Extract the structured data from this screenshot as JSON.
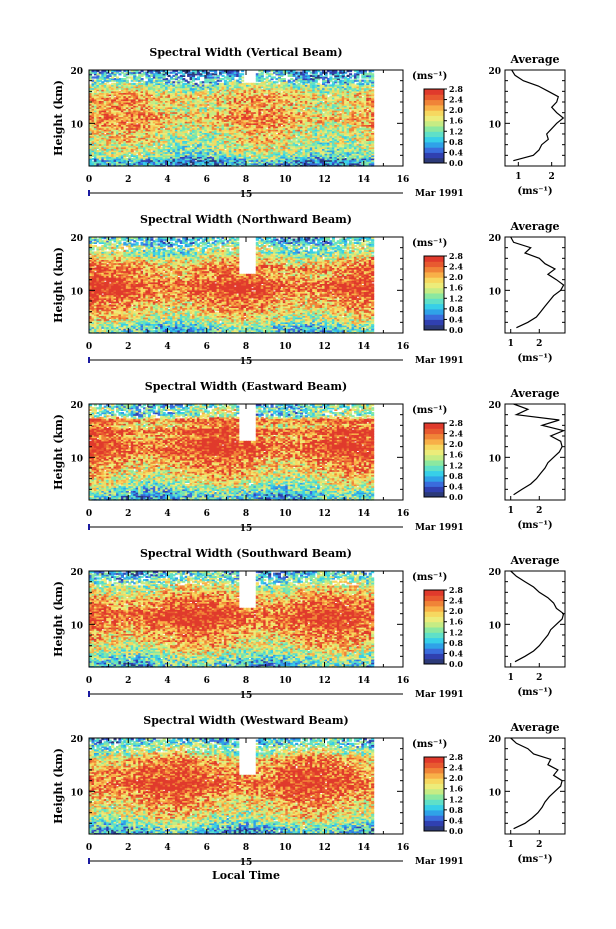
{
  "figure": {
    "xlabel": "Local Time",
    "date_label": "Mar 1991",
    "date_day": "15"
  },
  "colorbar": {
    "unit": "(ms⁻¹)",
    "ticks": [
      "2.8",
      "2.4",
      "2.0",
      "1.6",
      "1.2",
      "0.8",
      "0.4",
      "0.0"
    ],
    "colors": [
      "#2c3a78",
      "#3040b0",
      "#3a6cdc",
      "#2fa2e8",
      "#37cfe8",
      "#5fe0c8",
      "#8be8a0",
      "#c6ec84",
      "#ecec7a",
      "#f6d860",
      "#f8b048",
      "#f08438",
      "#e85a30",
      "#e03a2c"
    ]
  },
  "chart_data": [
    {
      "type": "heatmap",
      "title": "Spectral Width (Vertical Beam)",
      "xlabel": "",
      "ylabel": "Height (km)",
      "xlim": [
        0,
        16
      ],
      "ylim": [
        2,
        20
      ],
      "x_ticks": [
        "0",
        "2",
        "4",
        "6",
        "8",
        "10",
        "12",
        "14",
        "16"
      ],
      "y_ticks": [
        "20",
        "10"
      ],
      "value_range": [
        0,
        2.8
      ],
      "data_end_hour": 14.5,
      "gap_hours": [
        7.8,
        8.5
      ],
      "gap_heights": [
        17.5,
        20
      ],
      "profile": {
        "title": "Average",
        "xlabel": "(ms⁻¹)",
        "x_ticks": [
          "1",
          "2"
        ],
        "y_ticks": [
          "20",
          "10"
        ],
        "xlim": [
          0.6,
          2.4
        ],
        "height": [
          3,
          4,
          5,
          6,
          7,
          8,
          9,
          10,
          11,
          12,
          13,
          14,
          15,
          16,
          17,
          18,
          19,
          20
        ],
        "width": [
          0.85,
          1.45,
          1.62,
          1.7,
          1.9,
          1.85,
          2.0,
          2.15,
          2.35,
          2.15,
          2.0,
          2.15,
          2.2,
          1.9,
          1.6,
          1.15,
          0.9,
          0.8
        ]
      }
    },
    {
      "type": "heatmap",
      "title": "Spectral Width (Northward Beam)",
      "xlabel": "",
      "ylabel": "Height (km)",
      "xlim": [
        0,
        16
      ],
      "ylim": [
        2,
        20
      ],
      "x_ticks": [
        "0",
        "2",
        "4",
        "6",
        "8",
        "10",
        "12",
        "14",
        "16"
      ],
      "y_ticks": [
        "20",
        "10"
      ],
      "value_range": [
        0,
        2.8
      ],
      "data_end_hour": 14.5,
      "gap_hours": [
        7.6,
        8.5
      ],
      "gap_heights": [
        13,
        20
      ],
      "profile": {
        "title": "Average",
        "xlabel": "(ms⁻¹)",
        "x_ticks": [
          "1",
          "2"
        ],
        "y_ticks": [
          "20",
          "10"
        ],
        "xlim": [
          0.8,
          2.9
        ],
        "height": [
          3,
          4,
          5,
          6,
          7,
          8,
          9,
          10,
          11,
          12,
          13,
          14,
          15,
          16,
          17,
          18,
          19,
          20
        ],
        "width": [
          1.2,
          1.6,
          1.9,
          2.05,
          2.2,
          2.35,
          2.5,
          2.75,
          2.85,
          2.6,
          2.3,
          2.55,
          2.2,
          2.0,
          1.5,
          1.7,
          1.1,
          1.0
        ]
      }
    },
    {
      "type": "heatmap",
      "title": "Spectral Width (Eastward Beam)",
      "xlabel": "",
      "ylabel": "Height (km)",
      "xlim": [
        0,
        16
      ],
      "ylim": [
        2,
        20
      ],
      "x_ticks": [
        "0",
        "2",
        "4",
        "6",
        "8",
        "10",
        "12",
        "14",
        "16"
      ],
      "y_ticks": [
        "20",
        "10"
      ],
      "value_range": [
        0,
        2.8
      ],
      "data_end_hour": 14.5,
      "gap_hours": [
        7.6,
        8.5
      ],
      "gap_heights": [
        13,
        20
      ],
      "profile": {
        "title": "Average",
        "xlabel": "(ms⁻¹)",
        "x_ticks": [
          "1",
          "2"
        ],
        "y_ticks": [
          "20",
          "10"
        ],
        "xlim": [
          0.8,
          2.9
        ],
        "height": [
          3,
          4,
          5,
          6,
          7,
          8,
          9,
          10,
          11,
          12,
          13,
          14,
          15,
          16,
          17,
          18,
          19,
          20
        ],
        "width": [
          1.1,
          1.4,
          1.7,
          1.9,
          2.05,
          2.2,
          2.3,
          2.5,
          2.7,
          2.8,
          2.75,
          2.4,
          2.85,
          2.1,
          2.7,
          1.2,
          1.6,
          1.1
        ]
      }
    },
    {
      "type": "heatmap",
      "title": "Spectral Width (Southward Beam)",
      "xlabel": "",
      "ylabel": "Height (km)",
      "xlim": [
        0,
        16
      ],
      "ylim": [
        2,
        20
      ],
      "x_ticks": [
        "0",
        "2",
        "4",
        "6",
        "8",
        "10",
        "12",
        "14",
        "16"
      ],
      "y_ticks": [
        "20",
        "10"
      ],
      "value_range": [
        0,
        2.8
      ],
      "data_end_hour": 14.5,
      "gap_hours": [
        7.6,
        8.5
      ],
      "gap_heights": [
        13,
        20
      ],
      "profile": {
        "title": "Average",
        "xlabel": "(ms⁻¹)",
        "x_ticks": [
          "1",
          "2"
        ],
        "y_ticks": [
          "20",
          "10"
        ],
        "xlim": [
          0.8,
          2.9
        ],
        "height": [
          3,
          4,
          5,
          6,
          7,
          8,
          9,
          10,
          11,
          12,
          13,
          14,
          15,
          16,
          17,
          18,
          19,
          20
        ],
        "width": [
          1.15,
          1.5,
          1.8,
          2.0,
          2.15,
          2.3,
          2.4,
          2.6,
          2.8,
          2.85,
          2.6,
          2.5,
          2.3,
          2.0,
          1.8,
          1.5,
          1.2,
          1.0
        ]
      }
    },
    {
      "type": "heatmap",
      "title": "Spectral Width (Westward Beam)",
      "xlabel": "",
      "ylabel": "Height (km)",
      "xlim": [
        0,
        16
      ],
      "ylim": [
        2,
        20
      ],
      "x_ticks": [
        "0",
        "2",
        "4",
        "6",
        "8",
        "10",
        "12",
        "14",
        "16"
      ],
      "y_ticks": [
        "20",
        "10"
      ],
      "value_range": [
        0,
        2.8
      ],
      "data_end_hour": 14.5,
      "gap_hours": [
        7.6,
        8.5
      ],
      "gap_heights": [
        13,
        20
      ],
      "profile": {
        "title": "Average",
        "xlabel": "(ms⁻¹)",
        "x_ticks": [
          "1",
          "2"
        ],
        "y_ticks": [
          "20",
          "10"
        ],
        "xlim": [
          0.8,
          2.9
        ],
        "height": [
          3,
          4,
          5,
          6,
          7,
          8,
          9,
          10,
          11,
          12,
          13,
          14,
          15,
          16,
          17,
          18,
          19,
          20
        ],
        "width": [
          1.1,
          1.5,
          1.75,
          1.95,
          2.1,
          2.2,
          2.35,
          2.55,
          2.75,
          2.8,
          2.5,
          2.65,
          2.3,
          2.4,
          1.8,
          1.6,
          1.2,
          1.0
        ]
      }
    }
  ]
}
